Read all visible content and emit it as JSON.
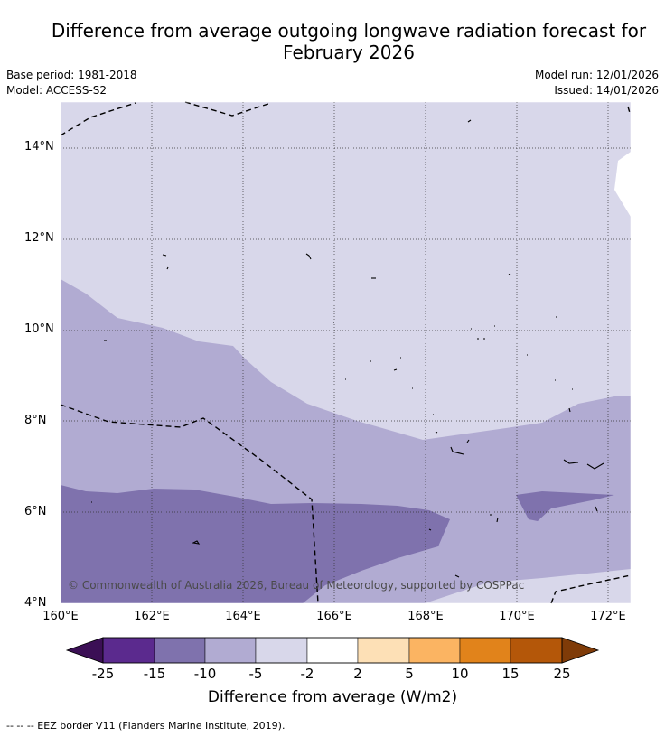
{
  "title_line1": "Difference from average outgoing longwave radiation forecast for",
  "title_line2": "February 2026",
  "base_period": "Base period: 1981-2018",
  "model": "Model: ACCESS-S2",
  "model_run": "Model run: 12/01/2026",
  "issued": "Issued: 14/01/2026",
  "map": {
    "lat_labels": [
      "14°N",
      "12°N",
      "10°N",
      "8°N",
      "6°N",
      "4°N"
    ],
    "lon_labels": [
      "160°E",
      "162°E",
      "164°E",
      "166°E",
      "168°E",
      "170°E",
      "172°E"
    ],
    "lon_range": [
      160,
      172.5
    ],
    "lat_range": [
      4,
      15
    ],
    "copyright": "© Commonwealth of Australia 2026, Bureau of Meteorology, supported by COSPPac"
  },
  "colorbar": {
    "ticks": [
      "-25",
      "-15",
      "-10",
      "-5",
      "-2",
      "2",
      "5",
      "10",
      "15",
      "25"
    ],
    "colors": {
      "below_min": "#3b0f55",
      "n25_n15": "#5b2a8e",
      "n15_n10": "#7f72ad",
      "n10_n5": "#b1abd2",
      "n5_n2": "#d8d7ea",
      "n2_2": "#ffffff",
      "p2_5": "#fde0b6",
      "p5_10": "#fbb462",
      "p10_15": "#e1831b",
      "p15_25": "#b45709",
      "above_max": "#7f3b08"
    },
    "label": "Difference from average (W/m2)"
  },
  "footnote": "--  --  -- EEZ border V11 (Flanders Marine Institute, 2019)."
}
